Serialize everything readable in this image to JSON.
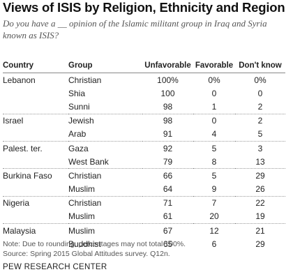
{
  "title": "Views of ISIS by Religion, Ethnicity and Region",
  "subtitle": "Do you have a __ opinion of the Islamic militant group in Iraq and Syria known as ISIS?",
  "note": "Note: Due to rounding, percentages may not total 100%.",
  "source": "Source: Spring 2015 Global Attitudes survey. Q12n.",
  "footer": "PEW RESEARCH CENTER",
  "chart_data": {
    "type": "table",
    "columns": [
      "Country",
      "Group",
      "Unfavorable",
      "Favorable",
      "Don't know"
    ],
    "rows": [
      {
        "country": "Lebanon",
        "group": "Christian",
        "unfavorable": "100%",
        "favorable": "0%",
        "dont_know": "0%"
      },
      {
        "country": "",
        "group": "Shia",
        "unfavorable": "100",
        "favorable": "0",
        "dont_know": "0"
      },
      {
        "country": "",
        "group": "Sunni",
        "unfavorable": "98",
        "favorable": "1",
        "dont_know": "2"
      },
      {
        "country": "Israel",
        "group": "Jewish",
        "unfavorable": "98",
        "favorable": "0",
        "dont_know": "2"
      },
      {
        "country": "",
        "group": "Arab",
        "unfavorable": "91",
        "favorable": "4",
        "dont_know": "5"
      },
      {
        "country": "Palest. ter.",
        "group": "Gaza",
        "unfavorable": "92",
        "favorable": "5",
        "dont_know": "3"
      },
      {
        "country": "",
        "group": "West Bank",
        "unfavorable": "79",
        "favorable": "8",
        "dont_know": "13"
      },
      {
        "country": "Burkina Faso",
        "group": "Christian",
        "unfavorable": "66",
        "favorable": "5",
        "dont_know": "29"
      },
      {
        "country": "",
        "group": "Muslim",
        "unfavorable": "64",
        "favorable": "9",
        "dont_know": "26"
      },
      {
        "country": "Nigeria",
        "group": "Christian",
        "unfavorable": "71",
        "favorable": "7",
        "dont_know": "22"
      },
      {
        "country": "",
        "group": "Muslim",
        "unfavorable": "61",
        "favorable": "20",
        "dont_know": "19"
      },
      {
        "country": "Malaysia",
        "group": "Muslim",
        "unfavorable": "67",
        "favorable": "12",
        "dont_know": "21"
      },
      {
        "country": "",
        "group": "Buddhist",
        "unfavorable": "65",
        "favorable": "6",
        "dont_know": "29"
      }
    ],
    "group_end_rows": [
      2,
      4,
      6,
      8,
      10
    ]
  }
}
